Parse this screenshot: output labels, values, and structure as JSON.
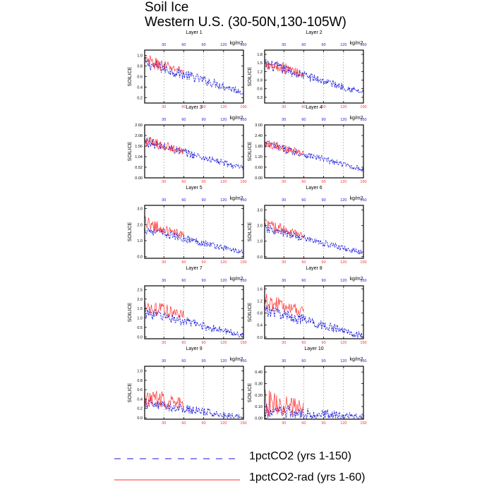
{
  "title": "Soil Ice",
  "subtitle": "Western U.S. (30-50N,130-105W)",
  "colors": {
    "ctl": "#1a1adc",
    "rad": "#ff3030",
    "axis": "#000000",
    "grid": "#999999"
  },
  "legend": [
    {
      "label": "1pctCO2 (yrs 1-150)",
      "style": "dashed",
      "color": "#1a1adc"
    },
    {
      "label": "1pctCO2-rad (yrs 1-60)",
      "style": "solid",
      "color": "#ff3030"
    }
  ],
  "chart_data": [
    {
      "type": "line",
      "title": "Layer 1",
      "ylabel": "SOILICE",
      "units": "kg/m2",
      "xlim": [
        1,
        150
      ],
      "xticks": [
        30,
        60,
        90,
        120,
        150
      ],
      "ylim": [
        0.1,
        1.1
      ],
      "yticks": [
        0.2,
        0.4,
        0.6,
        0.8,
        1.0
      ],
      "ytick_labels": [
        "0.2",
        "0.4",
        "0.6",
        "0.8",
        "1.0"
      ],
      "series": [
        {
          "name": "1pctCO2 (yrs 1-150)",
          "x": [
            1,
            150
          ],
          "start": 0.85,
          "end": 0.3,
          "noise": 0.12
        },
        {
          "name": "1pctCO2-rad (yrs 1-60)",
          "x": [
            1,
            60
          ],
          "start": 0.88,
          "end": 0.7,
          "noise": 0.14
        }
      ]
    },
    {
      "type": "line",
      "title": "Layer 2",
      "ylabel": "SOILICE",
      "units": "kg/m2",
      "xlim": [
        1,
        150
      ],
      "xticks": [
        30,
        60,
        90,
        120,
        150
      ],
      "ylim": [
        0.1,
        1.95
      ],
      "yticks": [
        0.3,
        0.6,
        0.9,
        1.2,
        1.5,
        1.8
      ],
      "ytick_labels": [
        "0.3",
        "0.6",
        "0.9",
        "1.2",
        "1.5",
        "1.8"
      ],
      "series": [
        {
          "name": "1pctCO2 (yrs 1-150)",
          "x": [
            1,
            150
          ],
          "start": 1.45,
          "end": 0.45,
          "noise": 0.2
        },
        {
          "name": "1pctCO2-rad (yrs 1-60)",
          "x": [
            1,
            60
          ],
          "start": 1.5,
          "end": 1.1,
          "noise": 0.25
        }
      ]
    },
    {
      "type": "line",
      "title": "Layer 3",
      "ylabel": "SOILICE",
      "units": "kg/m2",
      "xlim": [
        1,
        150
      ],
      "xticks": [
        30,
        60,
        90,
        120,
        150
      ],
      "ylim": [
        0,
        2.6
      ],
      "yticks": [
        0,
        0.52,
        1.04,
        1.56,
        2.08,
        2.6
      ],
      "ytick_labels": [
        "0.00",
        "0.52",
        "1.04",
        "1.56",
        "2.08",
        "2.60"
      ],
      "series": [
        {
          "name": "1pctCO2 (yrs 1-150)",
          "x": [
            1,
            150
          ],
          "start": 1.75,
          "end": 0.45,
          "noise": 0.25
        },
        {
          "name": "1pctCO2-rad (yrs 1-60)",
          "x": [
            1,
            60
          ],
          "start": 1.8,
          "end": 1.3,
          "noise": 0.3
        }
      ]
    },
    {
      "type": "line",
      "title": "Layer 4",
      "ylabel": "SOILICE",
      "units": "kg/m2",
      "xlim": [
        1,
        150
      ],
      "xticks": [
        30,
        60,
        90,
        120,
        150
      ],
      "ylim": [
        0,
        3.0
      ],
      "yticks": [
        0,
        0.6,
        1.2,
        1.8,
        2.4,
        3.0
      ],
      "ytick_labels": [
        "0.00",
        "0.60",
        "1.20",
        "1.80",
        "2.40",
        "3.00"
      ],
      "series": [
        {
          "name": "1pctCO2 (yrs 1-150)",
          "x": [
            1,
            150
          ],
          "start": 1.9,
          "end": 0.45,
          "noise": 0.25
        },
        {
          "name": "1pctCO2-rad (yrs 1-60)",
          "x": [
            1,
            60
          ],
          "start": 2.0,
          "end": 1.35,
          "noise": 0.3
        }
      ]
    },
    {
      "type": "line",
      "title": "Layer 5",
      "ylabel": "SOILICE",
      "units": "kg/m2",
      "xlim": [
        1,
        150
      ],
      "xticks": [
        30,
        60,
        90,
        120,
        150
      ],
      "ylim": [
        -0.1,
        3.2
      ],
      "yticks": [
        0,
        1.0,
        2.0,
        3.0
      ],
      "ytick_labels": [
        "0.0",
        "1.0",
        "2.0",
        "3.0"
      ],
      "series": [
        {
          "name": "1pctCO2 (yrs 1-150)",
          "x": [
            1,
            150
          ],
          "start": 1.7,
          "end": 0.25,
          "noise": 0.3
        },
        {
          "name": "1pctCO2-rad (yrs 1-60)",
          "x": [
            1,
            60
          ],
          "start": 2.1,
          "end": 1.3,
          "noise": 0.4
        }
      ]
    },
    {
      "type": "line",
      "title": "Layer 6",
      "ylabel": "SOILICE",
      "units": "kg/m2",
      "xlim": [
        1,
        150
      ],
      "xticks": [
        30,
        60,
        90,
        120,
        150
      ],
      "ylim": [
        -0.1,
        3.3
      ],
      "yticks": [
        0,
        1.0,
        2.0,
        3.0
      ],
      "ytick_labels": [
        "0.0",
        "1.0",
        "2.0",
        "3.0"
      ],
      "series": [
        {
          "name": "1pctCO2 (yrs 1-150)",
          "x": [
            1,
            150
          ],
          "start": 1.8,
          "end": 0.2,
          "noise": 0.3
        },
        {
          "name": "1pctCO2-rad (yrs 1-60)",
          "x": [
            1,
            60
          ],
          "start": 2.1,
          "end": 1.3,
          "noise": 0.4
        }
      ]
    },
    {
      "type": "line",
      "title": "Layer 7",
      "ylabel": "SOILICE",
      "units": "kg/m2",
      "xlim": [
        1,
        150
      ],
      "xticks": [
        30,
        60,
        90,
        120,
        150
      ],
      "ylim": [
        -0.1,
        2.7
      ],
      "yticks": [
        0,
        0.5,
        1.0,
        1.5,
        2.0,
        2.5
      ],
      "ytick_labels": [
        "0.0",
        "0.5",
        "1.0",
        "1.5",
        "2.0",
        "2.5"
      ],
      "series": [
        {
          "name": "1pctCO2 (yrs 1-150)",
          "x": [
            1,
            150
          ],
          "start": 1.3,
          "end": 0.05,
          "noise": 0.3
        },
        {
          "name": "1pctCO2-rad (yrs 1-60)",
          "x": [
            1,
            60
          ],
          "start": 1.6,
          "end": 1.2,
          "noise": 0.45
        }
      ]
    },
    {
      "type": "line",
      "title": "Layer 8",
      "ylabel": "SOILICE",
      "units": "kg/m2",
      "xlim": [
        1,
        150
      ],
      "xticks": [
        30,
        60,
        90,
        120,
        150
      ],
      "ylim": [
        -0.05,
        1.7
      ],
      "yticks": [
        0,
        0.4,
        0.8,
        1.2,
        1.6
      ],
      "ytick_labels": [
        "0.0",
        "0.4",
        "0.8",
        "1.2",
        "1.6"
      ],
      "series": [
        {
          "name": "1pctCO2 (yrs 1-150)",
          "x": [
            1,
            150
          ],
          "start": 0.9,
          "end": 0.02,
          "noise": 0.22
        },
        {
          "name": "1pctCO2-rad (yrs 1-60)",
          "x": [
            1,
            60
          ],
          "start": 1.15,
          "end": 0.85,
          "noise": 0.3
        }
      ]
    },
    {
      "type": "line",
      "title": "Layer 9",
      "ylabel": "SOILICE",
      "units": "kg/m2",
      "xlim": [
        1,
        150
      ],
      "xticks": [
        30,
        60,
        90,
        120,
        150
      ],
      "ylim": [
        -0.03,
        1.1
      ],
      "yticks": [
        0,
        0.2,
        0.4,
        0.6,
        0.8,
        1.0
      ],
      "ytick_labels": [
        "0.0",
        "0.2",
        "0.4",
        "0.6",
        "0.8",
        "1.0"
      ],
      "series": [
        {
          "name": "1pctCO2 (yrs 1-150)",
          "x": [
            1,
            150
          ],
          "start": 0.3,
          "end": 0.0,
          "noise": 0.12
        },
        {
          "name": "1pctCO2-rad (yrs 1-60)",
          "x": [
            1,
            60
          ],
          "start": 0.4,
          "end": 0.3,
          "noise": 0.25
        }
      ]
    },
    {
      "type": "line",
      "title": "Layer 10",
      "ylabel": "SOILICE",
      "units": "kg/m2",
      "xlim": [
        1,
        150
      ],
      "xticks": [
        30,
        60,
        90,
        120,
        150
      ],
      "ylim": [
        -0.01,
        0.45
      ],
      "yticks": [
        0,
        0.1,
        0.2,
        0.3,
        0.4
      ],
      "ytick_labels": [
        "0.00",
        "0.10",
        "0.20",
        "0.30",
        "0.40"
      ],
      "series": [
        {
          "name": "1pctCO2 (yrs 1-150)",
          "x": [
            1,
            150
          ],
          "start": 0.05,
          "end": 0.0,
          "noise": 0.07
        },
        {
          "name": "1pctCO2-rad (yrs 1-60)",
          "x": [
            1,
            60
          ],
          "start": 0.12,
          "end": 0.08,
          "noise": 0.12
        }
      ]
    }
  ]
}
